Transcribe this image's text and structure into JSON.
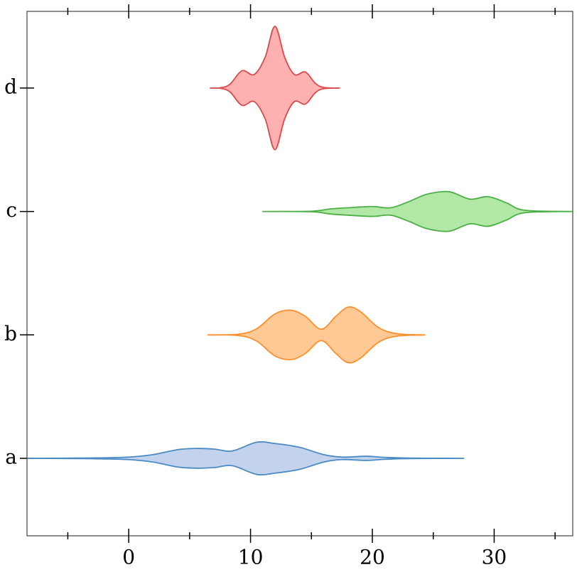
{
  "chart_data": {
    "type": "violin",
    "orientation": "horizontal",
    "categories": [
      "a",
      "b",
      "c",
      "d"
    ],
    "xlim": [
      -8.35,
      36.45
    ],
    "xticks": [
      0,
      10,
      20,
      30
    ],
    "xminorticks": [
      -5,
      5,
      15,
      25,
      35
    ],
    "violins": [
      {
        "color": "#4a8bc4",
        "fill": "#c3d3ee",
        "x": [
          -8.3,
          -3,
          0,
          2,
          4,
          5.5,
          7,
          8.5,
          10.5,
          12,
          14,
          16,
          17.5,
          19.5,
          21,
          23,
          27.5
        ],
        "widths": [
          0,
          0.003,
          0.01,
          0.03,
          0.07,
          0.08,
          0.075,
          0.06,
          0.13,
          0.12,
          0.09,
          0.03,
          0.01,
          0.017,
          0.008,
          0.002,
          0
        ]
      },
      {
        "color": "#ff8f2d",
        "fill": "#ffc996",
        "x": [
          6.5,
          9,
          10.5,
          12,
          13.3,
          14.5,
          15.8,
          17,
          18,
          19,
          20.5,
          22,
          24.3
        ],
        "widths": [
          0,
          0.005,
          0.05,
          0.17,
          0.2,
          0.15,
          0.046,
          0.15,
          0.225,
          0.19,
          0.06,
          0.01,
          0
        ]
      },
      {
        "color": "#4caf45",
        "fill": "#b2e8a6",
        "x": [
          11,
          15,
          16.5,
          18,
          20,
          21.5,
          23,
          24.5,
          26.3,
          28,
          29.5,
          31,
          32.5,
          36.4
        ],
        "widths": [
          0,
          0.002,
          0.02,
          0.03,
          0.04,
          0.03,
          0.08,
          0.14,
          0.16,
          0.1,
          0.12,
          0.07,
          0.01,
          0
        ]
      },
      {
        "color": "#d94a4a",
        "fill": "#ffb0b0",
        "x": [
          6.7,
          7.5,
          8.3,
          9.3,
          10.3,
          11.2,
          12,
          12.8,
          13.6,
          14.5,
          15.3,
          16,
          17.3
        ],
        "widths": [
          0,
          0.002,
          0.03,
          0.14,
          0.11,
          0.25,
          0.5,
          0.25,
          0.11,
          0.13,
          0.04,
          0.005,
          0
        ]
      }
    ]
  }
}
